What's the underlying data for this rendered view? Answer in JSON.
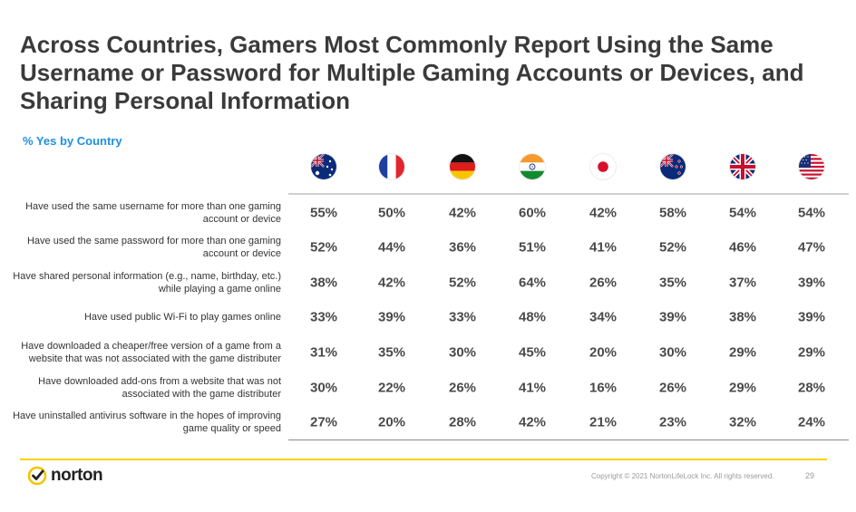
{
  "title": "Across Countries, Gamers Most Commonly Report Using the Same Username or Password for Multiple Gaming Accounts or Devices, and Sharing Personal Information",
  "subtitle": "% Yes by Country",
  "countries": [
    {
      "flag": "australia-flag-icon"
    },
    {
      "flag": "france-flag-icon"
    },
    {
      "flag": "germany-flag-icon"
    },
    {
      "flag": "india-flag-icon"
    },
    {
      "flag": "japan-flag-icon"
    },
    {
      "flag": "new-zealand-flag-icon"
    },
    {
      "flag": "uk-flag-icon"
    },
    {
      "flag": "usa-flag-icon"
    }
  ],
  "rows": [
    {
      "label": "Have used the same username for more than one gaming account or device",
      "values": [
        "55%",
        "50%",
        "42%",
        "60%",
        "42%",
        "58%",
        "54%",
        "54%"
      ]
    },
    {
      "label": "Have used the same password for more than one gaming account or device",
      "values": [
        "52%",
        "44%",
        "36%",
        "51%",
        "41%",
        "52%",
        "46%",
        "47%"
      ]
    },
    {
      "label": "Have shared personal information (e.g., name, birthday, etc.) while playing a game online",
      "values": [
        "38%",
        "42%",
        "52%",
        "64%",
        "26%",
        "35%",
        "37%",
        "39%"
      ]
    },
    {
      "label": "Have used public Wi-Fi to play games online",
      "values": [
        "33%",
        "39%",
        "33%",
        "48%",
        "34%",
        "39%",
        "38%",
        "39%"
      ]
    },
    {
      "label": "Have downloaded a cheaper/free version of a game from a website that was not associated with the game distributer",
      "values": [
        "31%",
        "35%",
        "30%",
        "45%",
        "20%",
        "30%",
        "29%",
        "29%"
      ]
    },
    {
      "label": "Have downloaded add-ons from a website that was not associated with the game distributer",
      "values": [
        "30%",
        "22%",
        "26%",
        "41%",
        "16%",
        "26%",
        "29%",
        "28%"
      ]
    },
    {
      "label": "Have uninstalled antivirus software in the hopes of improving game quality or speed",
      "values": [
        "27%",
        "20%",
        "28%",
        "42%",
        "21%",
        "23%",
        "32%",
        "24%"
      ]
    }
  ],
  "footer": {
    "logo_text": "norton",
    "copyright": "Copyright © 2021 NortonLifeLock Inc. All rights reserved.",
    "page_number": "29"
  },
  "colors": {
    "title": "#3a3a3a",
    "subtitle": "#1f8fe0",
    "footer_rule": "#f5d400"
  }
}
